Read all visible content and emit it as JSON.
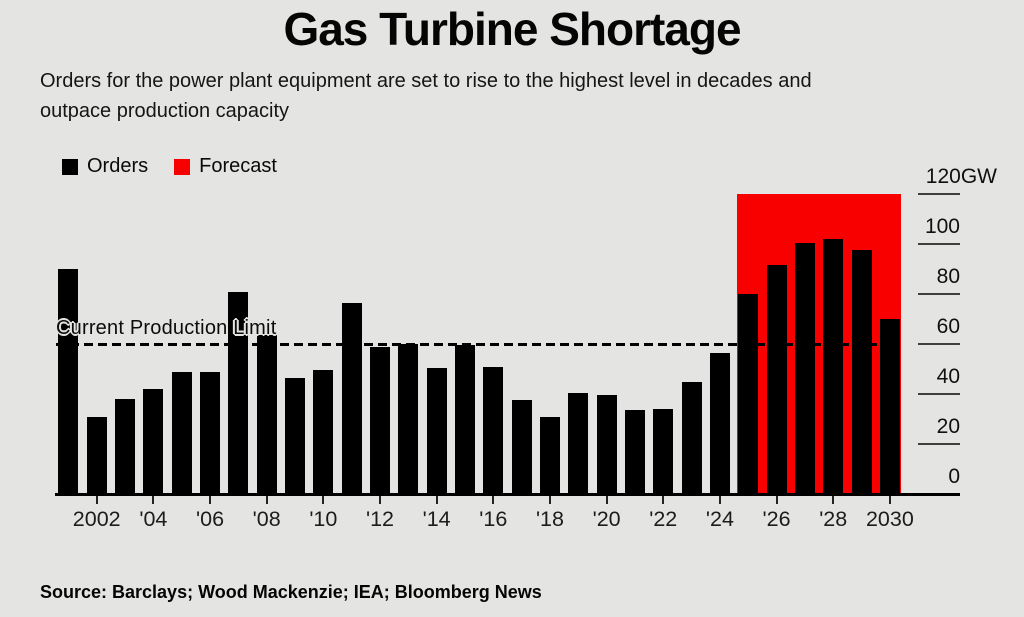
{
  "header": {
    "title": "Gas Turbine Shortage",
    "subtitle_lines": [
      "Orders for the power plant equipment are set to rise to the highest level in decades and",
      "outpace production capacity"
    ]
  },
  "legend": {
    "orders": "Orders",
    "forecast": "Forecast"
  },
  "footer": {
    "source": "Source: Barclays; Wood Mackenzie; IEA; Bloomberg News"
  },
  "colors": {
    "background": "#e4e5e2",
    "orders": "#000000",
    "forecast": "#f80000",
    "axis": "#000000"
  },
  "chart_data": {
    "type": "bar",
    "title": "Gas Turbine Shortage",
    "unit": "GW",
    "ylabel": "GW",
    "ylim": [
      0,
      120
    ],
    "grid": false,
    "legend_position": "top-left",
    "yticks": [
      0,
      20,
      40,
      60,
      80,
      100,
      120
    ],
    "ytick_labels": [
      "0",
      "20",
      "40",
      "60",
      "80",
      "100",
      "120GW"
    ],
    "xtick_years": [
      2002,
      2004,
      2006,
      2008,
      2010,
      2012,
      2014,
      2016,
      2018,
      2020,
      2022,
      2024,
      2026,
      2028,
      2030
    ],
    "xtick_labels": [
      "2002",
      "'04",
      "'06",
      "'08",
      "'10",
      "'12",
      "'14",
      "'16",
      "'18",
      "'20",
      "'22",
      "'24",
      "'26",
      "'28",
      "2030"
    ],
    "years": [
      2001,
      2002,
      2003,
      2004,
      2005,
      2006,
      2007,
      2008,
      2009,
      2010,
      2011,
      2012,
      2013,
      2014,
      2015,
      2016,
      2017,
      2018,
      2019,
      2020,
      2021,
      2022,
      2023,
      2024,
      2025,
      2026,
      2027,
      2028,
      2029,
      2030
    ],
    "values": [
      90,
      31,
      38,
      42,
      49,
      49,
      81,
      63.5,
      46.5,
      49.5,
      76.5,
      59,
      60,
      50.5,
      59.5,
      51,
      37.5,
      31,
      40.5,
      39.5,
      33.5,
      34,
      45,
      56.5,
      80,
      91.5,
      100.5,
      102,
      97.5,
      70
    ],
    "series_name": "Orders (GW)",
    "forecast_region": {
      "label": "Forecast",
      "start_year": 2025,
      "end_year": 2030,
      "top": 120
    },
    "production_limit": {
      "label": "Current Production Limit",
      "value": 60
    }
  }
}
